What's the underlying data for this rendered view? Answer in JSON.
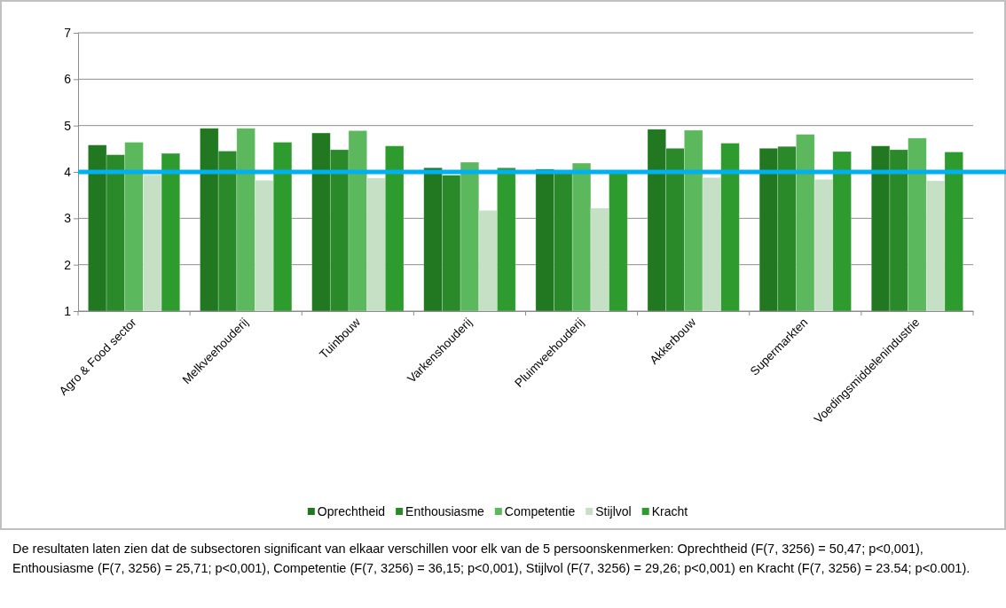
{
  "chart_data": {
    "type": "bar",
    "categories": [
      "Agro & Food sector",
      "Melkveehouderij",
      "Tuinbouw",
      "Varkenshouderij",
      "Pluimveehouderij",
      "Akkerbouw",
      "Supermarkten",
      "Voedingsmiddelenindustrie"
    ],
    "series": [
      {
        "name": "Oprechtheid",
        "color": "#217821",
        "values": [
          4.58,
          4.94,
          4.84,
          4.09,
          4.06,
          4.92,
          4.51,
          4.56
        ]
      },
      {
        "name": "Enthousiasme",
        "color": "#2a8a2a",
        "values": [
          4.37,
          4.45,
          4.48,
          3.93,
          4.0,
          4.51,
          4.55,
          4.48
        ]
      },
      {
        "name": "Competentie",
        "color": "#5cb85c",
        "values": [
          4.64,
          4.94,
          4.89,
          4.21,
          4.19,
          4.9,
          4.81,
          4.73
        ]
      },
      {
        "name": "Stijlvol",
        "color": "#c6e0c6",
        "values": [
          3.94,
          3.82,
          3.87,
          3.17,
          3.22,
          3.88,
          3.84,
          3.81
        ]
      },
      {
        "name": "Kracht",
        "color": "#2e9b2e",
        "values": [
          4.4,
          4.64,
          4.56,
          4.09,
          3.98,
          4.62,
          4.44,
          4.43
        ]
      }
    ],
    "ylim": [
      1,
      7
    ],
    "yticks": [
      1,
      2,
      3,
      4,
      5,
      6,
      7
    ],
    "grid": "y",
    "legend": "bottom",
    "ref_lines": [
      {
        "axis": "y",
        "value": 4,
        "color": "#00b0f0"
      }
    ],
    "annotations": [
      "De resultaten laten zien dat de subsectoren significant van elkaar verschillen voor elk van de 5 persoonskenmerken: Oprechtheid (F(7, 3256) = 50,47; p<0,001), Enthousiasme (F(7, 3256) = 25,71; p<0,001), Competentie (F(7, 3256) = 36,15; p<0,001), Stijlvol (F(7, 3256) = 29,26; p<0,001) en Kracht (F(7, 3256) = 23.54; p<0.001)."
    ]
  }
}
